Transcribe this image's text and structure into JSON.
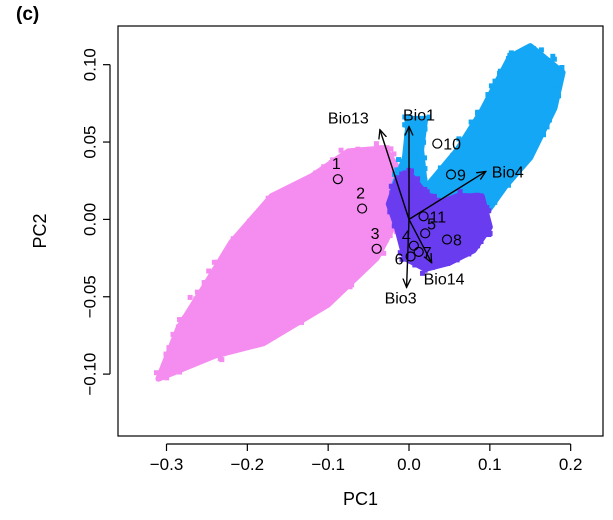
{
  "panel_label": "(c)",
  "colors": {
    "pink": "#f58cf0",
    "blue": "#14a7f5",
    "purple": "#6a3cf0",
    "axis": "#000000"
  },
  "chart_data": {
    "type": "scatter",
    "xlabel": "PC1",
    "ylabel": "PC2",
    "xlim": [
      -0.36,
      0.24
    ],
    "ylim": [
      -0.14,
      0.125
    ],
    "xticks": [
      -0.3,
      -0.2,
      -0.1,
      0.0,
      0.1,
      0.2
    ],
    "xtick_labels": [
      "−0.3",
      "−0.2",
      "−0.1",
      "0.0",
      "0.1",
      "0.2"
    ],
    "yticks": [
      -0.1,
      -0.05,
      0.0,
      0.05,
      0.1
    ],
    "ytick_labels": [
      "−0.10",
      "−0.05",
      "0.00",
      "0.05",
      "0.10"
    ],
    "grid": false,
    "point_clouds": [
      {
        "color": "pink",
        "polygon": [
          [
            -0.31,
            -0.103
          ],
          [
            -0.24,
            -0.088
          ],
          [
            -0.18,
            -0.08
          ],
          [
            -0.1,
            -0.055
          ],
          [
            -0.04,
            -0.025
          ],
          [
            -0.02,
            -0.005
          ],
          [
            -0.01,
            0.03
          ],
          [
            -0.03,
            0.046
          ],
          [
            -0.075,
            0.044
          ],
          [
            -0.12,
            0.028
          ],
          [
            -0.17,
            0.015
          ],
          [
            -0.22,
            -0.015
          ],
          [
            -0.255,
            -0.045
          ],
          [
            -0.285,
            -0.07
          ]
        ]
      },
      {
        "color": "blue",
        "polygon": [
          [
            -0.005,
            0.0
          ],
          [
            0.02,
            0.02
          ],
          [
            0.06,
            0.045
          ],
          [
            0.09,
            0.07
          ],
          [
            0.125,
            0.105
          ],
          [
            0.15,
            0.112
          ],
          [
            0.19,
            0.095
          ],
          [
            0.18,
            0.072
          ],
          [
            0.15,
            0.04
          ],
          [
            0.12,
            0.022
          ],
          [
            0.09,
            0.0
          ],
          [
            0.055,
            -0.01
          ],
          [
            0.02,
            0.02
          ],
          [
            0.015,
            0.045
          ],
          [
            0.02,
            0.065
          ],
          [
            0.0,
            0.065
          ],
          [
            -0.005,
            0.04
          ],
          [
            -0.02,
            0.02
          ]
        ]
      },
      {
        "color": "purple",
        "polygon": [
          [
            -0.015,
            -0.005
          ],
          [
            -0.005,
            -0.025
          ],
          [
            0.02,
            -0.032
          ],
          [
            0.05,
            -0.028
          ],
          [
            0.08,
            -0.02
          ],
          [
            0.1,
            -0.005
          ],
          [
            0.09,
            0.015
          ],
          [
            0.06,
            0.015
          ],
          [
            0.035,
            0.01
          ],
          [
            0.015,
            0.02
          ],
          [
            0.0,
            0.03
          ],
          [
            -0.015,
            0.025
          ],
          [
            -0.025,
            0.01
          ]
        ]
      }
    ],
    "sites": [
      {
        "label": "1",
        "x": -0.088,
        "y": 0.026
      },
      {
        "label": "2",
        "x": -0.058,
        "y": 0.007
      },
      {
        "label": "3",
        "x": -0.04,
        "y": -0.019
      },
      {
        "label": "4",
        "x": 0.006,
        "y": -0.017
      },
      {
        "label": "5",
        "x": 0.02,
        "y": -0.009
      },
      {
        "label": "6",
        "x": 0.002,
        "y": -0.024
      },
      {
        "label": "7",
        "x": 0.012,
        "y": -0.021
      },
      {
        "label": "8",
        "x": 0.047,
        "y": -0.013
      },
      {
        "label": "9",
        "x": 0.052,
        "y": 0.029
      },
      {
        "label": "10",
        "x": 0.035,
        "y": 0.049
      },
      {
        "label": "11",
        "x": 0.018,
        "y": 0.002
      }
    ],
    "loading_vectors": [
      {
        "label": "Bio1",
        "x": 0.0,
        "y": 0.06
      },
      {
        "label": "Bio13",
        "x": -0.036,
        "y": 0.058
      },
      {
        "label": "Bio4",
        "x": 0.095,
        "y": 0.031
      },
      {
        "label": "Bio3",
        "x": -0.003,
        "y": -0.044
      },
      {
        "label": "Bio14",
        "x": 0.028,
        "y": -0.028
      }
    ]
  }
}
